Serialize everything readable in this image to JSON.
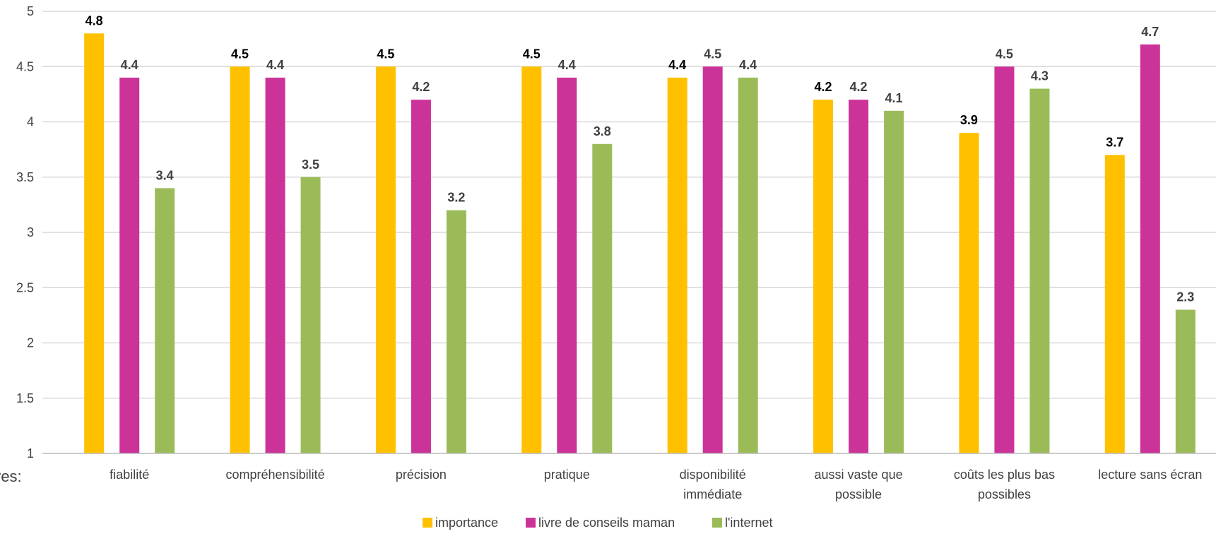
{
  "chart_data": {
    "type": "bar",
    "categories": [
      [
        "fiabilité"
      ],
      [
        "compréhensibilité"
      ],
      [
        "précision"
      ],
      [
        "pratique"
      ],
      [
        "disponibilité",
        "immédiate"
      ],
      [
        "aussi vaste que",
        "possible"
      ],
      [
        "coûts les plus bas",
        "possibles"
      ],
      [
        "lecture sans écran"
      ]
    ],
    "series": [
      {
        "name": "importance",
        "color": "#FFC000",
        "label_color": "#000000",
        "values": [
          4.8,
          4.5,
          4.5,
          4.5,
          4.4,
          4.2,
          3.9,
          3.7
        ]
      },
      {
        "name": "livre de conseils maman",
        "color": "#CC3399",
        "label_color": "#404040",
        "values": [
          4.4,
          4.4,
          4.2,
          4.4,
          4.5,
          4.2,
          4.5,
          4.7
        ]
      },
      {
        "name": "l'internet",
        "color": "#9BBB59",
        "label_color": "#404040",
        "values": [
          3.4,
          3.5,
          3.2,
          3.8,
          4.4,
          4.1,
          4.3,
          2.3
        ]
      }
    ],
    "ylim": [
      1,
      5
    ],
    "yticks": [
      "1",
      "1.5",
      "2",
      "2.5",
      "3",
      "3.5",
      "4",
      "4.5",
      "5"
    ],
    "grid": true,
    "legend_position": "bottom",
    "truncated_side_text": "res:"
  }
}
